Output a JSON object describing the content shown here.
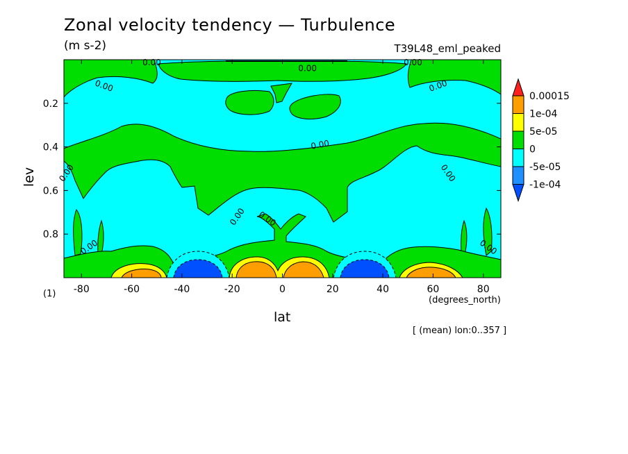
{
  "title": "Zonal velocity tendency — Turbulence",
  "units": "(m s-2)",
  "run_label": "T39L48_eml_peaked",
  "note_one": "(1)",
  "x_units": "(degrees_north)",
  "footer": "[ (mean) lon:0..357 ]",
  "chart_data": {
    "type": "contour",
    "xlabel": "lat",
    "ylabel": "lev",
    "xlim": [
      -87,
      87
    ],
    "ylim": [
      1.0,
      0.0
    ],
    "x_ticks": [
      -80,
      -60,
      -40,
      -20,
      0,
      20,
      40,
      60,
      80
    ],
    "y_ticks": [
      0.2,
      0.4,
      0.6,
      0.8
    ],
    "contour_label": "0.00",
    "colorbar": {
      "levels": [
        "0.00015",
        "1e-04",
        "5e-05",
        "0",
        "-5e-05",
        "-1e-04"
      ],
      "bands": [
        {
          "range": "> 0.00015",
          "color": "#ff2020"
        },
        {
          "range": "1e-04 to 0.00015",
          "color": "#ff9e00"
        },
        {
          "range": "5e-05 to 1e-04",
          "color": "#ffff00"
        },
        {
          "range": "0 to 5e-05",
          "color": "#00dd00"
        },
        {
          "range": "-5e-05 to 0",
          "color": "#00ffff"
        },
        {
          "range": "-1e-04 to -5e-05",
          "color": "#1e90ff"
        },
        {
          "range": "< -1e-04",
          "color": "#0050ff"
        }
      ]
    },
    "features": [
      {
        "region": "lower-level peak near 5N",
        "lat": 8,
        "lev": 0.97,
        "band": "1e-04 to 0.00015"
      },
      {
        "region": "lower-level peak near 10S",
        "lat": -8,
        "lev": 0.97,
        "band": "1e-04 to 0.00015"
      },
      {
        "region": "lower-level peak near 60S",
        "lat": -60,
        "lev": 0.98,
        "band": "1e-04 to 0.00015"
      },
      {
        "region": "lower-level peak near 60N",
        "lat": 62,
        "lev": 0.98,
        "band": "1e-04 to 0.00015"
      },
      {
        "region": "lower-level minimum near 35S",
        "lat": -35,
        "lev": 0.97,
        "band": "< -1e-04"
      },
      {
        "region": "lower-level minimum near 35N",
        "lat": 35,
        "lev": 0.97,
        "band": "< -1e-04"
      }
    ]
  }
}
